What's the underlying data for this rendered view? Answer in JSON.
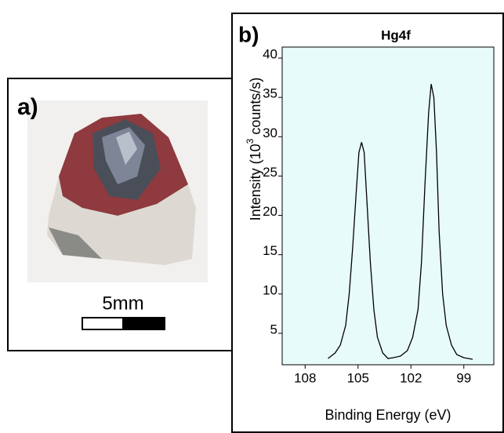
{
  "figure": {
    "panel_a": {
      "label": "a)",
      "scale_bar": "5mm"
    }
  },
  "chart_data": {
    "type": "line",
    "panel_label": "b)",
    "title": "Hg4f",
    "xlabel": "Binding Energy (eV)",
    "ylabel": {
      "text": "Intensity (10",
      "superscript": "3",
      "suffix": " counts/s)"
    },
    "x": [
      106.7,
      106.3,
      106.0,
      105.7,
      105.5,
      105.3,
      105.1,
      104.95,
      104.8,
      104.65,
      104.5,
      104.3,
      104.1,
      103.9,
      103.6,
      103.3,
      103.0,
      102.6,
      102.2,
      101.9,
      101.6,
      101.4,
      101.2,
      101.0,
      100.85,
      100.7,
      100.55,
      100.4,
      100.2,
      100.0,
      99.7,
      99.4,
      99.0,
      98.5
    ],
    "series": [
      {
        "name": "Hg4f",
        "color": "#000000",
        "values": [
          1.8,
          2.5,
          3.5,
          6,
          10,
          16,
          23,
          28,
          29.3,
          28,
          22,
          14,
          8,
          4.5,
          2.5,
          1.8,
          1.9,
          2.1,
          2.8,
          4.5,
          8,
          14,
          24,
          33,
          36.7,
          35,
          28,
          18,
          10,
          6,
          3.5,
          2.3,
          1.9,
          1.7
        ]
      }
    ],
    "xlim": [
      109.3,
      97.3
    ],
    "xticks": [
      108,
      105,
      102,
      99
    ],
    "ylim": [
      1,
      41.4
    ],
    "yticks": [
      5,
      10,
      15,
      20,
      25,
      30,
      35,
      40
    ],
    "background": "#e8fbfb"
  }
}
